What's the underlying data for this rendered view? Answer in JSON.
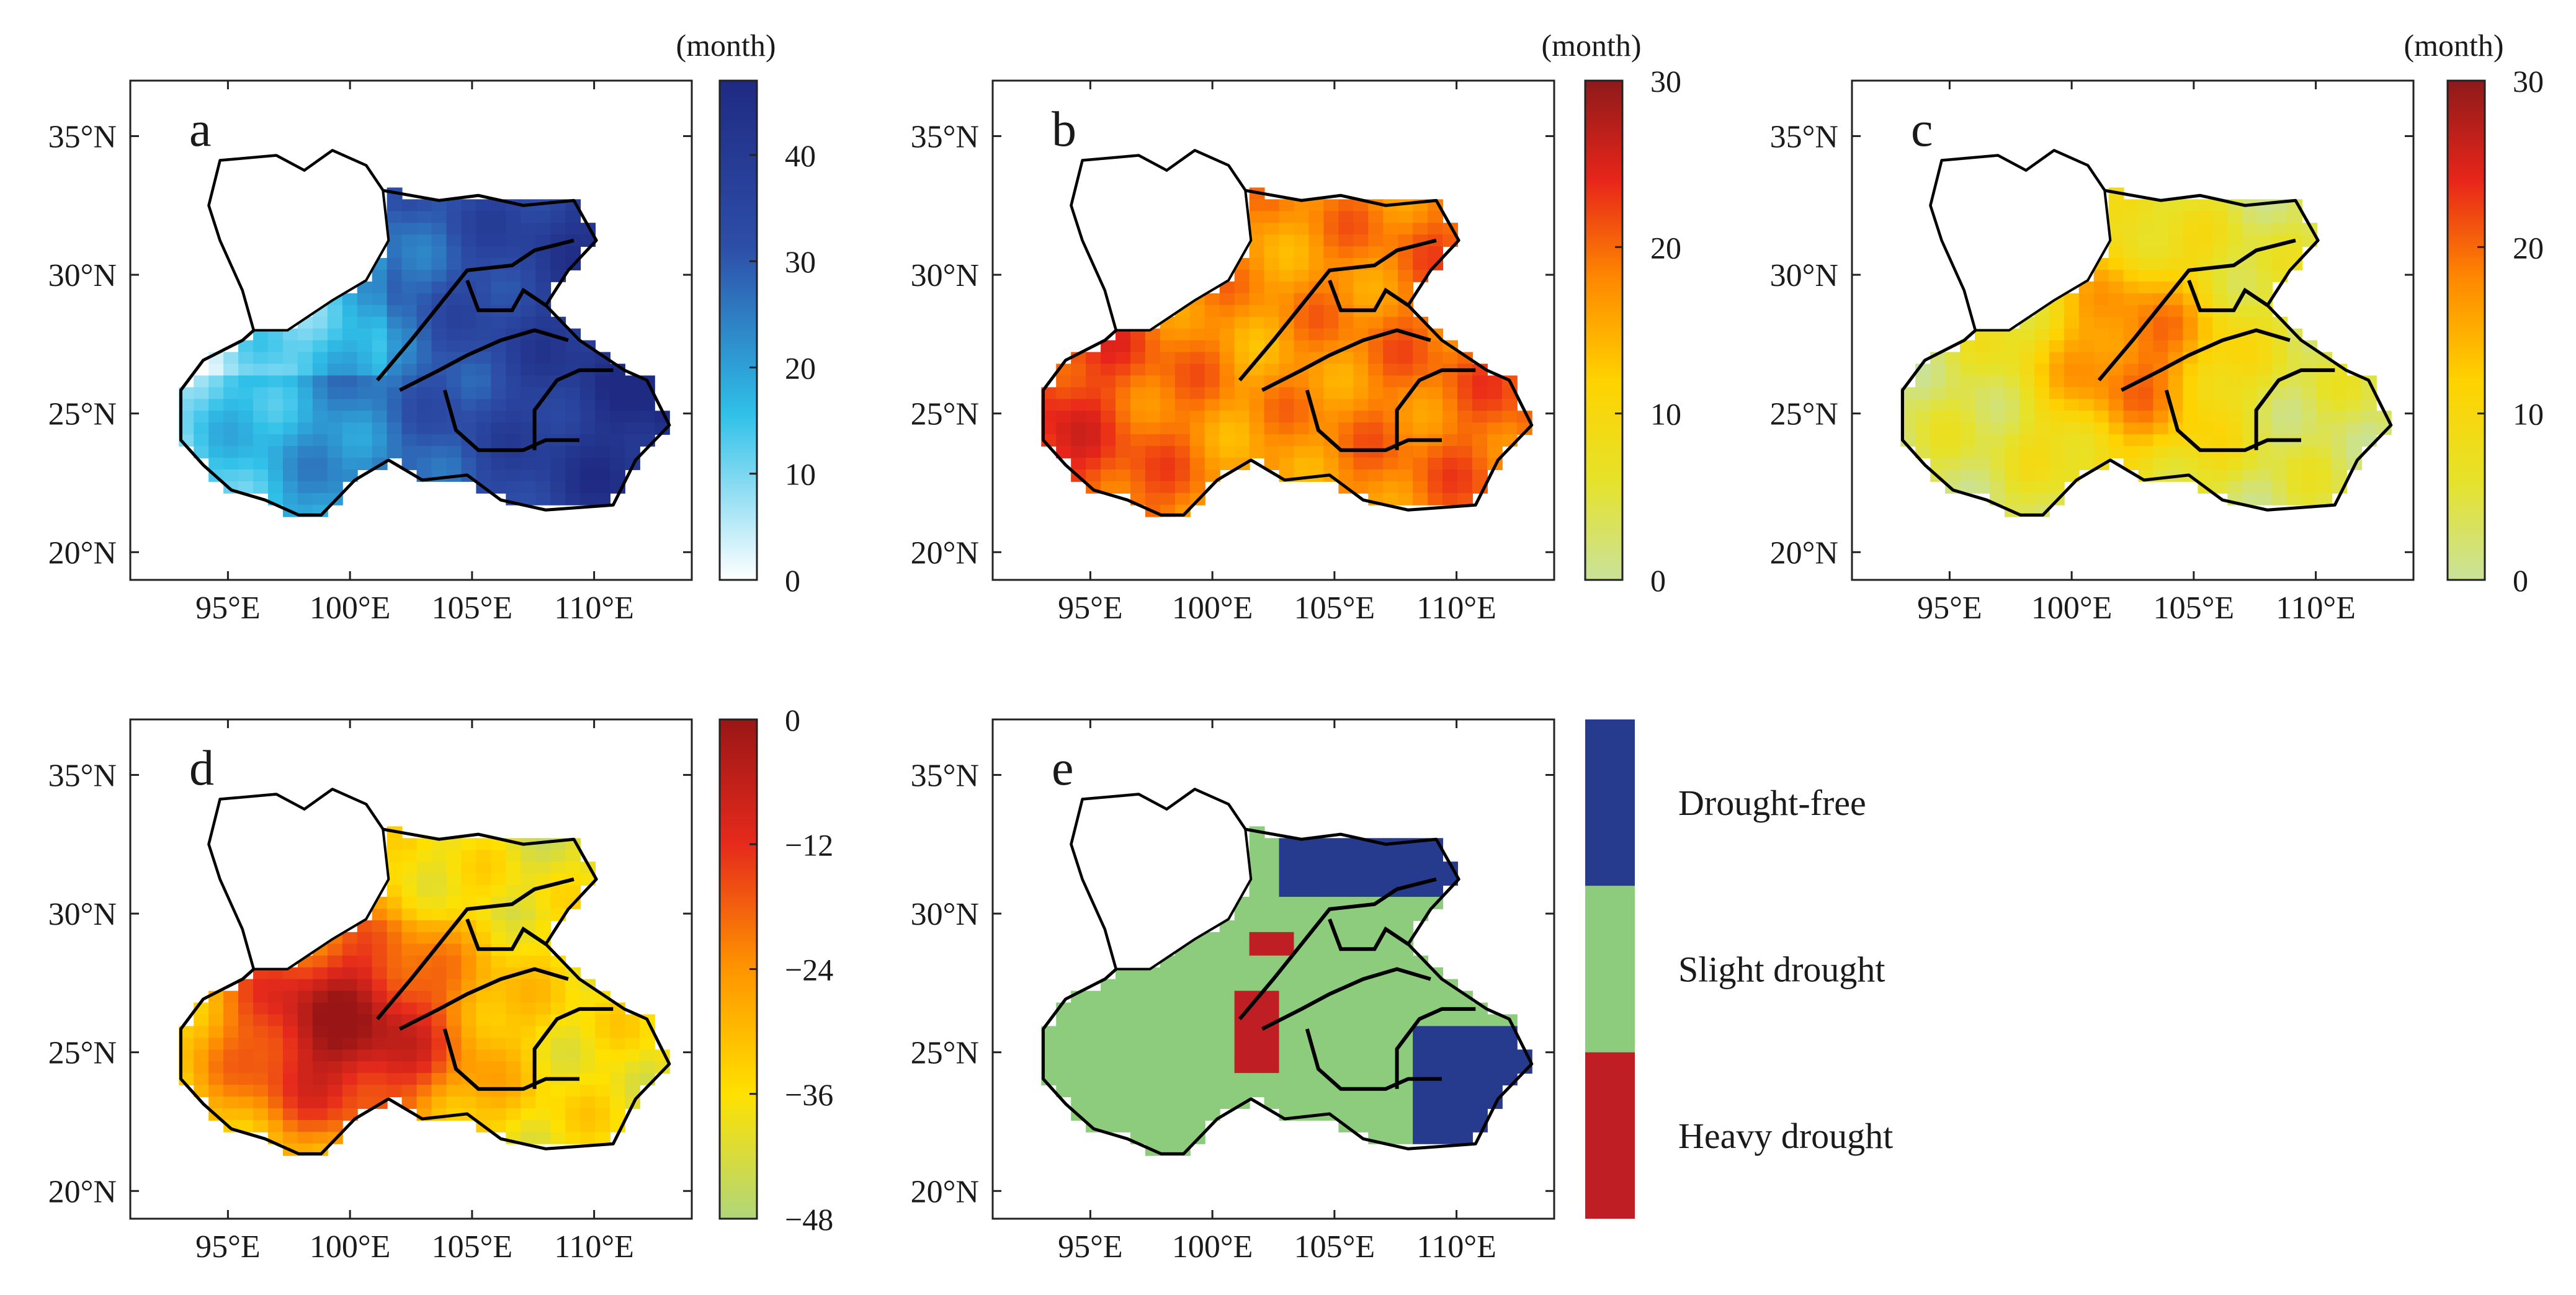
{
  "figure": {
    "lat_ticks": [
      "35°N",
      "30°N",
      "25°N",
      "20°N"
    ],
    "lon_ticks": [
      "95°E",
      "100°E",
      "105°E",
      "110°E"
    ],
    "lat_values": [
      35,
      30,
      25,
      20
    ],
    "lon_values": [
      95,
      100,
      105,
      110
    ],
    "lat_range": [
      19,
      37
    ],
    "lon_range": [
      91,
      114
    ],
    "panels": [
      {
        "id": "a",
        "panel_label": "a",
        "colorbar": {
          "title": "(month)",
          "ticks": [
            "0",
            "10",
            "20",
            "30",
            "40"
          ],
          "tick_values": [
            0,
            10,
            20,
            30,
            40
          ],
          "range": [
            0,
            47
          ],
          "gradient": [
            "#ffffff",
            "#2fc0e8",
            "#2d4ea8",
            "#1f2a82"
          ]
        }
      },
      {
        "id": "b",
        "panel_label": "b",
        "colorbar": {
          "title": "(month)",
          "ticks": [
            "0",
            "10",
            "20",
            "30"
          ],
          "tick_values": [
            0,
            10,
            20,
            30
          ],
          "range": [
            0,
            30
          ],
          "gradient": [
            "#c9e29a",
            "#e6e22a",
            "#ffd200",
            "#ff8a00",
            "#e8251a",
            "#8e1a1a"
          ]
        }
      },
      {
        "id": "c",
        "panel_label": "c",
        "colorbar": {
          "title": "(month)",
          "ticks": [
            "0",
            "10",
            "20",
            "30"
          ],
          "tick_values": [
            0,
            10,
            20,
            30
          ],
          "range": [
            0,
            30
          ],
          "gradient": [
            "#c9e29a",
            "#e6e22a",
            "#ffd200",
            "#ff8a00",
            "#e8251a",
            "#8e1a1a"
          ]
        }
      },
      {
        "id": "d",
        "panel_label": "d",
        "colorbar": {
          "title": "",
          "ticks": [
            "0",
            "−12",
            "−24",
            "−36",
            "−48"
          ],
          "tick_values": [
            0,
            -12,
            -24,
            -36,
            -48
          ],
          "range": [
            -48,
            0
          ],
          "gradient": [
            "#b0d67a",
            "#ffe100",
            "#ff9500",
            "#e62a1c",
            "#9a1616"
          ]
        }
      },
      {
        "id": "e",
        "panel_label": "e",
        "legend": [
          {
            "label": "Drought-free",
            "color": "#263a8e"
          },
          {
            "label": "Slight drought",
            "color": "#8ccc7c"
          },
          {
            "label": "Heavy drought",
            "color": "#be1e24"
          }
        ]
      }
    ]
  }
}
